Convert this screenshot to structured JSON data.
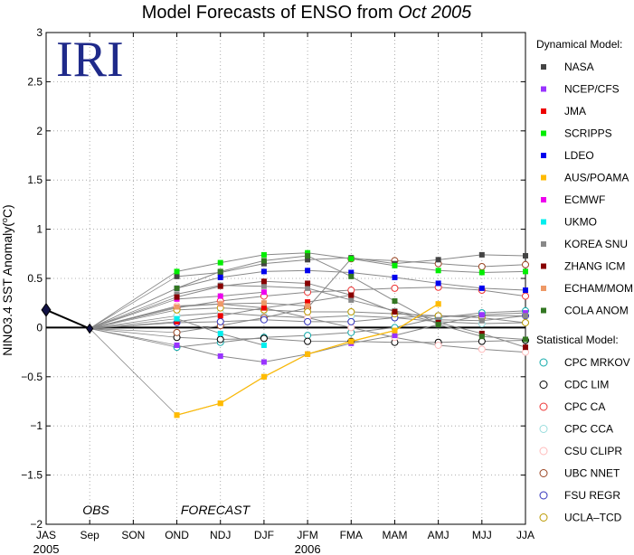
{
  "chart_data": {
    "type": "line",
    "title_prefix": "Model Forecasts of ENSO from ",
    "title_italic": "Oct 2005",
    "logo_text": "IRI",
    "ylabel_main": "NINO3.4 SST Anomaly(",
    "ylabel_sup": "o",
    "ylabel_end": "C)",
    "ylim": [
      -2,
      3
    ],
    "yticks": [
      "−2",
      "−1.5",
      "−1",
      "−0.5",
      "0",
      "0.5",
      "1",
      "1.5",
      "2",
      "2.5",
      "3"
    ],
    "categories": [
      "JAS",
      "Sep",
      "SON",
      "OND",
      "NDJ",
      "DJF",
      "JFM",
      "FMA",
      "MAM",
      "AMJ",
      "MJJ",
      "JJA"
    ],
    "year_labels": [
      {
        "text": "2005",
        "at": 0
      },
      {
        "text": "2006",
        "at": 6
      }
    ],
    "text_obs": "OBS",
    "text_forecast": "FORECAST",
    "grid": true,
    "legend_position": "right",
    "observed": {
      "name": "OBS",
      "values": [
        0.18,
        -0.01
      ]
    },
    "legend_dynamical_title": "Dynamical Model:",
    "legend_statistical_title": "Statistical Model:",
    "dynamical": [
      {
        "name": "NASA",
        "color": "#444444",
        "values": [
          0.52,
          0.56,
          0.65,
          0.69,
          0.71,
          0.65,
          0.69,
          0.74,
          0.73
        ]
      },
      {
        "name": "NCEP/CFS",
        "color": "#9933ff",
        "values": [
          -0.18,
          -0.29,
          -0.35,
          -0.27,
          -0.16,
          -0.08,
          0.03,
          0.13,
          0.15
        ]
      },
      {
        "name": "JMA",
        "color": "#ee0000",
        "values": [
          0.06,
          0.12,
          0.2,
          0.26,
          0.33
        ]
      },
      {
        "name": "SCRIPPS",
        "color": "#00ee00",
        "values": [
          0.57,
          0.66,
          0.74,
          0.76,
          0.7,
          0.63,
          0.58,
          0.56,
          0.57
        ]
      },
      {
        "name": "LDEO",
        "color": "#0000ee",
        "values": [
          0.4,
          0.51,
          0.57,
          0.58,
          0.56,
          0.51,
          0.45,
          0.4,
          0.38
        ]
      },
      {
        "name": "AUS/POAMA",
        "color": "#ffbb00",
        "values": [
          -0.89,
          -0.77,
          -0.5,
          -0.27,
          -0.14,
          -0.03,
          0.24
        ]
      },
      {
        "name": "ECMWF",
        "color": "#ee00ee",
        "values": [
          0.29,
          0.32,
          0.36
        ]
      },
      {
        "name": "UKMO",
        "color": "#00eeee",
        "values": [
          0.09,
          -0.06,
          -0.18
        ]
      },
      {
        "name": "KOREA SNU",
        "color": "#888888",
        "values": [
          0.34,
          0.43,
          0.42,
          0.4,
          0.28,
          0.17,
          0.08,
          0.07,
          0.12
        ]
      },
      {
        "name": "ZHANG ICM",
        "color": "#880000",
        "values": [
          0.31,
          0.42,
          0.47,
          0.45,
          0.33,
          0.16,
          0.05,
          -0.06,
          -0.2
        ]
      },
      {
        "name": "ECHAM/MOM",
        "color": "#ee9966",
        "values": [
          0.21,
          0.24,
          0.25,
          0.22
        ]
      },
      {
        "name": "COLA ANOM",
        "color": "#337722",
        "values": [
          0.4,
          0.57,
          0.68,
          0.73,
          0.52,
          0.27,
          0.03,
          -0.09,
          -0.12
        ]
      }
    ],
    "statistical": [
      {
        "name": "CPC MRKOV",
        "color": "#11aaaa",
        "values": [
          -0.2,
          -0.15,
          -0.1,
          -0.08,
          -0.05,
          0.0,
          0.1,
          0.15,
          0.17
        ]
      },
      {
        "name": "CDC LIM",
        "color": "#000000",
        "values": [
          -0.1,
          -0.12,
          -0.11,
          -0.14,
          -0.14,
          -0.15,
          -0.15,
          -0.14,
          -0.13
        ]
      },
      {
        "name": "CPC CA",
        "color": "#ee3333",
        "values": [
          0.2,
          0.27,
          0.32,
          0.36,
          0.38,
          0.4,
          0.41,
          0.38,
          0.32
        ]
      },
      {
        "name": "CPC CCA",
        "color": "#99dddd",
        "values": [
          0.12,
          0.15,
          0.12,
          0.1,
          0.12,
          0.1,
          0.06,
          0.04,
          0.05
        ]
      },
      {
        "name": "CSU CLIPR",
        "color": "#ffbbbb",
        "values": [
          0.22,
          0.24,
          0.2,
          0.1,
          0.0,
          -0.1,
          -0.18,
          -0.22,
          -0.25
        ]
      },
      {
        "name": "UBC NNET",
        "color": "#994422",
        "values": [
          -0.05,
          0.02,
          0.1,
          0.2,
          0.7,
          0.68,
          0.65,
          0.62,
          0.64
        ]
      },
      {
        "name": "FSU REGR",
        "color": "#3333bb",
        "values": [
          0.05,
          0.06,
          0.08,
          0.06,
          0.06,
          0.1,
          0.12,
          0.12,
          0.12
        ]
      },
      {
        "name": "UCLA–TCD",
        "color": "#bb9900",
        "values": [
          0.18,
          0.2,
          0.18,
          0.16,
          0.16,
          0.14,
          0.12,
          0.1,
          0.05
        ]
      }
    ]
  }
}
